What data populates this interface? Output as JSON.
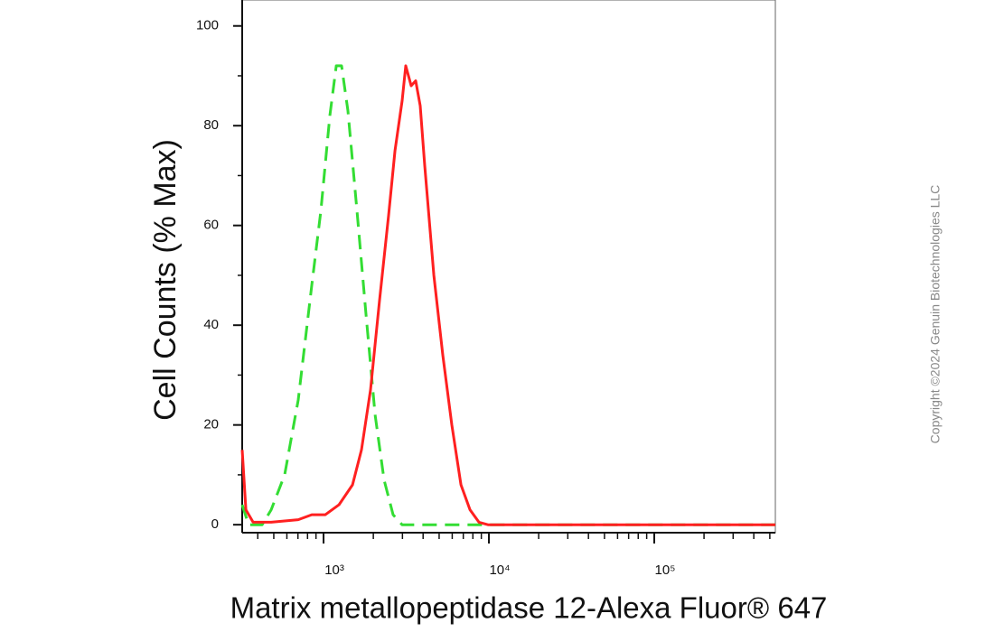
{
  "chart_data": {
    "type": "line",
    "ylabel": "Cell Counts (% Max)",
    "xlabel": "Matrix metallopeptidase 12-Alexa Fluor® 647",
    "copyright": "Copyright ©2024 Genuin Biotechnologies LLC",
    "xscale": "log",
    "xlim": [
      322,
      540000
    ],
    "ylim": [
      -1.6,
      105.2
    ],
    "xticks": [
      {
        "value": 1000,
        "label": "10³"
      },
      {
        "value": 10000,
        "label": "10⁴"
      },
      {
        "value": 100000,
        "label": "10⁵"
      }
    ],
    "xminorticks": [
      400,
      500,
      600,
      700,
      800,
      900,
      2000,
      3000,
      4000,
      5000,
      6000,
      7000,
      8000,
      9000,
      20000,
      30000,
      40000,
      50000,
      60000,
      70000,
      80000,
      90000,
      200000,
      300000,
      400000,
      500000
    ],
    "yticks": [
      0,
      20,
      40,
      60,
      80,
      100
    ],
    "yminorticks": [
      10,
      30,
      50,
      70,
      90
    ],
    "series": [
      {
        "color": "#33dd33",
        "dash": true,
        "x": [
          322,
          352,
          425,
          482,
          582,
          703,
          849,
          963,
          1092,
          1193,
          1286,
          1404,
          1593,
          1807,
          2049,
          2323,
          2634,
          2987,
          540000
        ],
        "values": [
          4,
          0,
          0,
          3,
          10,
          25,
          48,
          63,
          82,
          92,
          92,
          83,
          63,
          42,
          22,
          9,
          2,
          0,
          0
        ]
      },
      {
        "color": "#ff2020",
        "dash": false,
        "x": [
          322,
          339,
          375,
          482,
          703,
          849,
          1025,
          1239,
          1496,
          1696,
          1923,
          2182,
          2473,
          2703,
          2987,
          3143,
          3388,
          3607,
          3844,
          4093,
          4643,
          5262,
          5970,
          6776,
          7681,
          8710,
          9874,
          540000
        ],
        "values": [
          15,
          3,
          0.5,
          0.5,
          1,
          2,
          2,
          4,
          8,
          15,
          27,
          45,
          62,
          75,
          85,
          92,
          88,
          89,
          84,
          72,
          50,
          34,
          20,
          8,
          3,
          0.5,
          0,
          0
        ]
      }
    ]
  }
}
